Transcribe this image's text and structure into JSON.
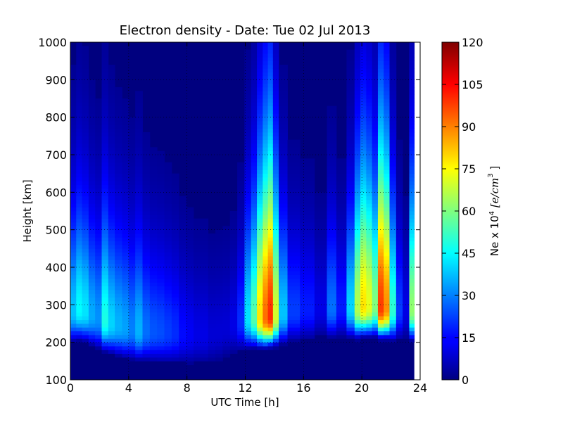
{
  "chart_data": {
    "type": "heatmap",
    "title": "Electron density - Date: Tue 02 Jul 2013",
    "xlabel": "UTC Time [h]",
    "ylabel": "Height [km]",
    "xlim": [
      0,
      24
    ],
    "ylim": [
      100,
      1000
    ],
    "x_ticks": [
      "0",
      "4",
      "8",
      "12",
      "16",
      "20",
      "24"
    ],
    "y_ticks": [
      "100",
      "200",
      "300",
      "400",
      "500",
      "600",
      "700",
      "800",
      "900",
      "1000"
    ],
    "grid": true,
    "data_end_hour": 23.6,
    "colorbar": {
      "label_prefix": "Ne x 10",
      "label_exp": "4",
      "label_unit": "[e/cm",
      "label_unit_exp": "3",
      "label_suffix": "]",
      "range": [
        0,
        120
      ],
      "ticks": [
        "0",
        "15",
        "30",
        "45",
        "60",
        "75",
        "90",
        "105",
        "120"
      ],
      "colormap": "jet"
    },
    "time_hours": [
      0.2,
      0.6,
      1.0,
      1.5,
      1.9,
      2.4,
      2.8,
      3.3,
      3.8,
      4.2,
      4.7,
      5.2,
      5.7,
      6.2,
      6.7,
      7.2,
      7.7,
      8.2,
      8.7,
      9.2,
      9.7,
      10.2,
      10.7,
      11.2,
      11.7,
      12.2,
      12.6,
      13.0,
      13.4,
      13.7,
      14.1,
      14.5,
      15.3,
      16.2,
      17.3,
      17.9,
      18.6,
      19.3,
      19.7,
      20.1,
      20.5,
      20.9,
      21.3,
      21.7,
      22.1,
      22.6,
      23.0,
      23.5
    ],
    "peak_height_km": [
      280,
      285,
      280,
      270,
      262,
      255,
      248,
      242,
      237,
      233,
      230,
      228,
      226,
      225,
      223,
      222,
      220,
      218,
      218,
      218,
      220,
      225,
      235,
      245,
      255,
      262,
      265,
      265,
      265,
      268,
      270,
      275,
      280,
      285,
      290,
      290,
      290,
      290,
      290,
      295,
      295,
      295,
      290,
      290,
      285,
      285,
      285,
      285
    ],
    "peak_density_ne": [
      38,
      45,
      42,
      35,
      32,
      48,
      40,
      36,
      34,
      30,
      36,
      28,
      25,
      24,
      22,
      20,
      16,
      14,
      12,
      12,
      10,
      10,
      10,
      12,
      20,
      42,
      55,
      78,
      92,
      100,
      70,
      38,
      22,
      18,
      12,
      28,
      18,
      40,
      66,
      78,
      72,
      60,
      98,
      88,
      50,
      22,
      12,
      62
    ]
  }
}
